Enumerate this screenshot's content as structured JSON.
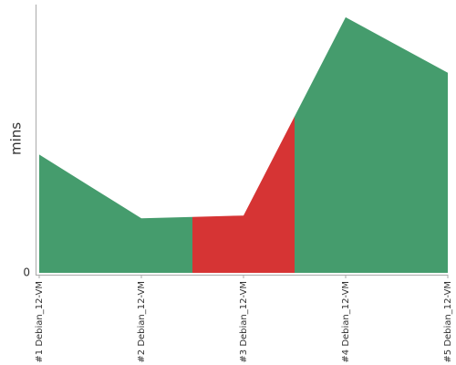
{
  "chart_data": {
    "type": "area",
    "y_label": "mins",
    "categories": [
      "#1 Debian_12-VM",
      "#2 Debian_12-VM",
      "#3 Debian_12-VM",
      "#4 Debian_12-VM",
      "#5 Debian_12-VM"
    ],
    "values": [
      130,
      60,
      63,
      281,
      220
    ],
    "colors": [
      "#459c6d",
      "#459c6d",
      "#d63434",
      "#459c6d",
      "#459c6d"
    ],
    "ylim": [
      0,
      300
    ],
    "yticks": [
      0
    ]
  }
}
